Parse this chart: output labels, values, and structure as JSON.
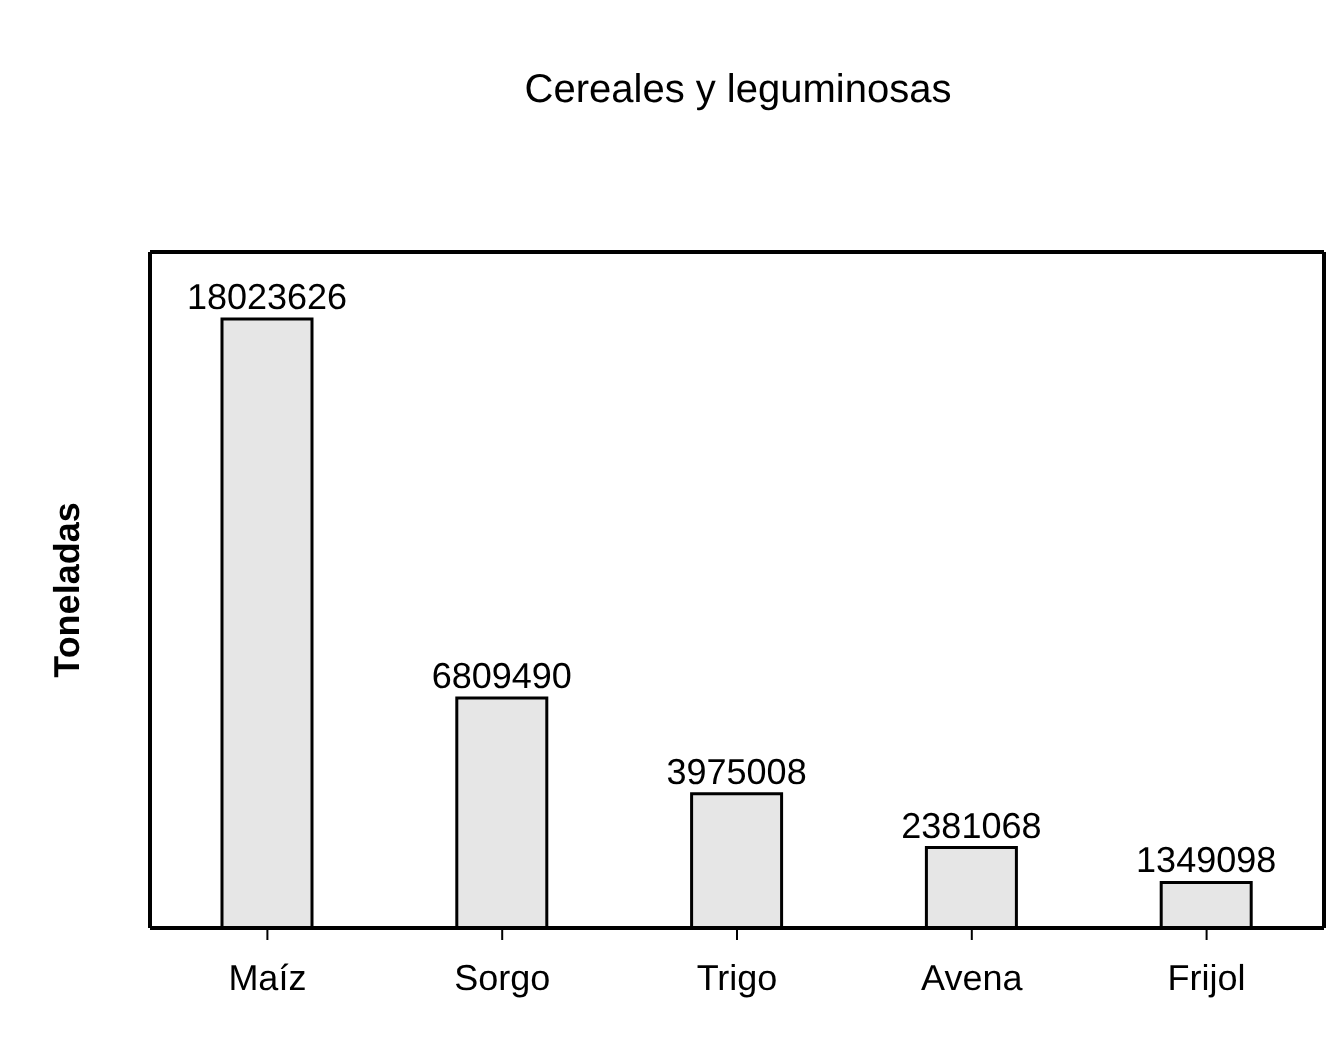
{
  "chart_data": {
    "type": "bar",
    "title": "Cereales y leguminosas",
    "ylabel": "Toneladas",
    "categories": [
      "Maíz",
      "Sorgo",
      "Trigo",
      "Avena",
      "Frijol"
    ],
    "values": [
      18023626,
      6809490,
      3975008,
      2381068,
      1349098
    ],
    "color": "#e6e6e6",
    "data_labels": true
  }
}
